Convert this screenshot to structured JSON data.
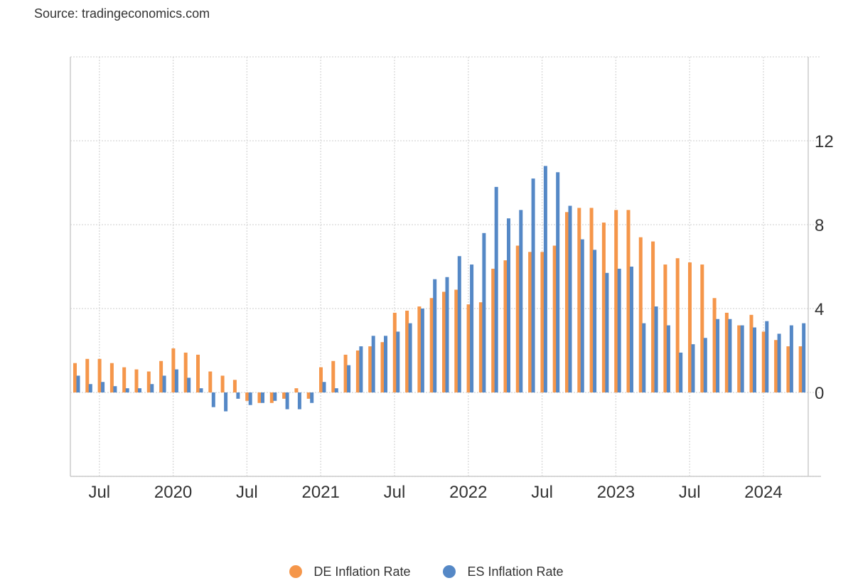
{
  "source_text": "Source: tradingeconomics.com",
  "colors": {
    "de": "#f5964a",
    "es": "#5588c6",
    "grid": "#d8d8d8",
    "axis": "#cccccc",
    "text": "#333333"
  },
  "chart_data": {
    "type": "bar",
    "title": "",
    "xlabel": "",
    "ylabel": "",
    "ylim": [
      -4,
      16
    ],
    "yticks": [
      0,
      4,
      8,
      12
    ],
    "grid": true,
    "legend_position": "bottom-center",
    "xtick_labels": [
      "Jul",
      "2020",
      "Jul",
      "2021",
      "Jul",
      "2022",
      "Jul",
      "2023",
      "Jul",
      "2024"
    ],
    "categories": [
      "2019-05",
      "2019-06",
      "2019-07",
      "2019-08",
      "2019-09",
      "2019-10",
      "2019-11",
      "2019-12",
      "2020-01",
      "2020-02",
      "2020-03",
      "2020-04",
      "2020-05",
      "2020-06",
      "2020-07",
      "2020-08",
      "2020-09",
      "2020-10",
      "2020-11",
      "2020-12",
      "2021-01",
      "2021-02",
      "2021-03",
      "2021-04",
      "2021-05",
      "2021-06",
      "2021-07",
      "2021-08",
      "2021-09",
      "2021-10",
      "2021-11",
      "2021-12",
      "2022-01",
      "2022-02",
      "2022-03",
      "2022-04",
      "2022-05",
      "2022-06",
      "2022-07",
      "2022-08",
      "2022-09",
      "2022-10",
      "2022-11",
      "2022-12",
      "2023-01",
      "2023-02",
      "2023-03",
      "2023-04",
      "2023-05",
      "2023-06",
      "2023-07",
      "2023-08",
      "2023-09",
      "2023-10",
      "2023-11",
      "2023-12",
      "2024-01",
      "2024-02",
      "2024-03",
      "2024-04"
    ],
    "series": [
      {
        "name": "DE Inflation Rate",
        "color": "#f5964a",
        "values": [
          1.4,
          1.6,
          1.6,
          1.4,
          1.2,
          1.1,
          1.0,
          1.5,
          2.1,
          1.9,
          1.8,
          1.0,
          0.8,
          0.6,
          -0.4,
          -0.5,
          -0.5,
          -0.3,
          0.2,
          -0.3,
          1.2,
          1.5,
          1.8,
          2.0,
          2.2,
          2.4,
          3.8,
          3.9,
          4.1,
          4.5,
          4.8,
          4.9,
          4.2,
          4.3,
          5.9,
          6.3,
          7.0,
          6.7,
          6.7,
          7.0,
          8.6,
          8.8,
          8.8,
          8.1,
          8.7,
          8.7,
          7.4,
          7.2,
          6.1,
          6.4,
          6.2,
          6.1,
          4.5,
          3.8,
          3.2,
          3.7,
          2.9,
          2.5,
          2.2,
          2.2
        ]
      },
      {
        "name": "ES Inflation Rate",
        "color": "#5588c6",
        "values": [
          0.8,
          0.4,
          0.5,
          0.3,
          0.2,
          0.2,
          0.4,
          0.8,
          1.1,
          0.7,
          0.2,
          -0.7,
          -0.9,
          -0.3,
          -0.6,
          -0.5,
          -0.4,
          -0.8,
          -0.8,
          -0.5,
          0.5,
          0.2,
          1.3,
          2.2,
          2.7,
          2.7,
          2.9,
          3.3,
          4.0,
          5.4,
          5.5,
          6.5,
          6.1,
          7.6,
          9.8,
          8.3,
          8.7,
          10.2,
          10.8,
          10.5,
          8.9,
          7.3,
          6.8,
          5.7,
          5.9,
          6.0,
          3.3,
          4.1,
          3.2,
          1.9,
          2.3,
          2.6,
          3.5,
          3.5,
          3.2,
          3.1,
          3.4,
          2.8,
          3.2,
          3.3
        ]
      }
    ]
  }
}
